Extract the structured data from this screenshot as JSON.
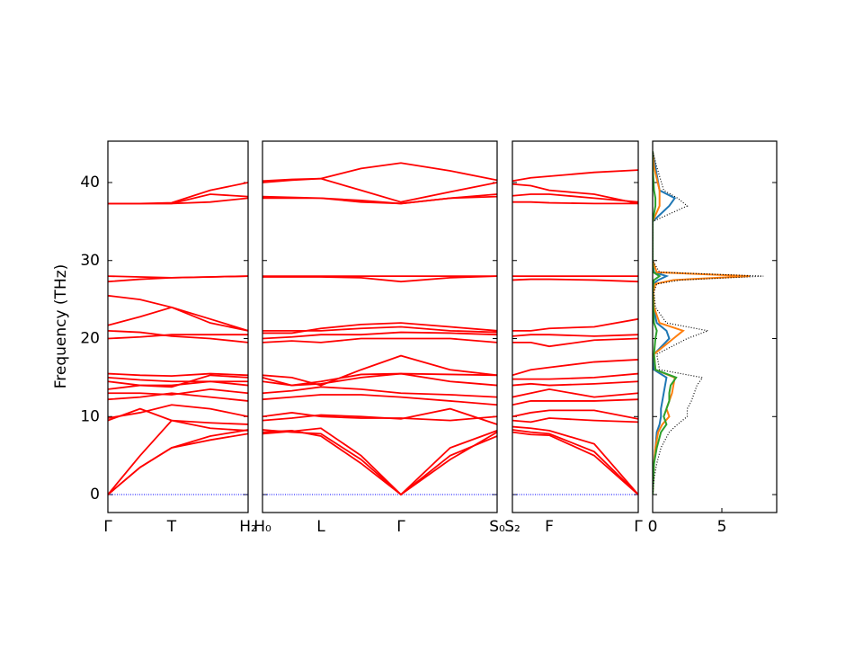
{
  "chart_data": [
    {
      "type": "line",
      "y_label": "Frequency (THz)",
      "color": "#ff0000",
      "ylim": [
        -2.3,
        45.3
      ],
      "yticks": [
        0,
        10,
        20,
        30,
        40
      ],
      "xlim": [
        0,
        1
      ],
      "xticks": [
        {
          "value": 0,
          "label": "Γ"
        },
        {
          "value": 0.455,
          "label": "T"
        },
        {
          "value": 1,
          "label": "H₂"
        }
      ],
      "zero_line": {
        "value": 0,
        "color": "#0000ff"
      },
      "x": [
        0,
        0.23,
        0.455,
        0.73,
        1
      ],
      "series": [
        {
          "values": [
            0,
            3.5,
            6,
            7,
            7.8
          ]
        },
        {
          "values": [
            0,
            3.5,
            6,
            7.5,
            8.3
          ]
        },
        {
          "values": [
            0,
            5,
            9.5,
            9.2,
            9
          ]
        },
        {
          "values": [
            9.5,
            11,
            9.5,
            8.5,
            8.2
          ]
        },
        {
          "values": [
            9.8,
            10.5,
            11.5,
            11,
            10
          ]
        },
        {
          "values": [
            12.2,
            12.5,
            13,
            12.5,
            12
          ]
        },
        {
          "values": [
            13,
            13,
            12.8,
            13.5,
            13
          ]
        },
        {
          "values": [
            13.5,
            14,
            14,
            14.5,
            14
          ]
        },
        {
          "values": [
            14.5,
            14,
            13.8,
            15.3,
            15
          ]
        },
        {
          "values": [
            15.5,
            15.3,
            15.2,
            15.5,
            15.3
          ]
        },
        {
          "values": [
            15,
            14.7,
            14.5,
            14.5,
            14.5
          ]
        },
        {
          "values": [
            20,
            20.2,
            20.5,
            20.5,
            20.5
          ]
        },
        {
          "values": [
            21,
            20.8,
            20.3,
            20,
            19.5
          ]
        },
        {
          "values": [
            21.7,
            22.8,
            24,
            22.5,
            21
          ]
        },
        {
          "values": [
            25.5,
            25,
            24,
            22,
            21
          ]
        },
        {
          "values": [
            27.3,
            27.6,
            27.8,
            27.9,
            28
          ]
        },
        {
          "values": [
            28,
            27.9,
            27.8,
            27.9,
            28
          ]
        },
        {
          "values": [
            37.3,
            37.3,
            37.3,
            37.5,
            38
          ]
        },
        {
          "values": [
            37.3,
            37.3,
            37.3,
            38.5,
            38.2
          ]
        },
        {
          "values": [
            37.3,
            37.3,
            37.4,
            39,
            40
          ]
        }
      ]
    },
    {
      "type": "line",
      "color": "#ff0000",
      "ylim": [
        -2.3,
        45.3
      ],
      "xlim": [
        0,
        1
      ],
      "xticks": [
        {
          "value": 0,
          "label": "H₀"
        },
        {
          "value": 0.249,
          "label": "L"
        },
        {
          "value": 0.59,
          "label": "Γ"
        },
        {
          "value": 1,
          "label": "S₀"
        }
      ],
      "zero_line": {
        "value": 0,
        "color": "#0000ff"
      },
      "x": [
        0,
        0.125,
        0.249,
        0.42,
        0.59,
        0.8,
        1
      ],
      "series": [
        {
          "values": [
            8,
            8.2,
            7.5,
            4,
            0,
            4.5,
            8
          ]
        },
        {
          "values": [
            8.3,
            8,
            7.8,
            4.5,
            0,
            5,
            7.5
          ]
        },
        {
          "values": [
            7.8,
            8.1,
            8.5,
            5,
            0,
            6,
            8.2
          ]
        },
        {
          "values": [
            9.5,
            9.8,
            10.2,
            10,
            9.7,
            11,
            9
          ]
        },
        {
          "values": [
            10,
            10.5,
            10,
            9.8,
            9.8,
            9.5,
            10
          ]
        },
        {
          "values": [
            12.2,
            12.5,
            12.8,
            12.8,
            12.5,
            12,
            11.5
          ]
        },
        {
          "values": [
            13,
            13.3,
            13.8,
            13.5,
            13,
            12.8,
            12.5
          ]
        },
        {
          "values": [
            14.5,
            14,
            14.2,
            15,
            15.5,
            14.5,
            14
          ]
        },
        {
          "values": [
            15.3,
            15,
            14,
            16,
            17.8,
            16,
            15.3
          ]
        },
        {
          "values": [
            15,
            14,
            14.5,
            15.4,
            15.5,
            15.4,
            15.3
          ]
        },
        {
          "values": [
            19.5,
            19.7,
            19.5,
            20,
            20,
            20,
            19.5
          ]
        },
        {
          "values": [
            20,
            20.2,
            20.5,
            20.5,
            20.8,
            20.7,
            20.5
          ]
        },
        {
          "values": [
            20.7,
            20.7,
            21.3,
            21.8,
            22,
            21.5,
            21
          ]
        },
        {
          "values": [
            21,
            21,
            21,
            21.3,
            21.5,
            21,
            20.8
          ]
        },
        {
          "values": [
            28,
            28,
            28,
            28,
            28,
            28,
            28
          ]
        },
        {
          "values": [
            27.9,
            27.9,
            27.9,
            27.8,
            27.3,
            27.8,
            28
          ]
        },
        {
          "values": [
            38.2,
            38.1,
            38,
            37.7,
            37.3,
            38,
            38.5
          ]
        },
        {
          "values": [
            38,
            38,
            38,
            37.5,
            37.3,
            38,
            38.2
          ]
        },
        {
          "values": [
            40.2,
            40.4,
            40.5,
            39,
            37.5,
            38.8,
            40
          ]
        },
        {
          "values": [
            40,
            40.3,
            40.5,
            41.8,
            42.5,
            41.5,
            40.3
          ]
        }
      ]
    },
    {
      "type": "line",
      "color": "#ff0000",
      "ylim": [
        -2.3,
        45.3
      ],
      "xlim": [
        0,
        1
      ],
      "xticks": [
        {
          "value": 0,
          "label": "S₂"
        },
        {
          "value": 0.293,
          "label": "F"
        },
        {
          "value": 1,
          "label": "Γ"
        }
      ],
      "zero_line": {
        "value": 0,
        "color": "#0000ff"
      },
      "x": [
        0,
        0.146,
        0.293,
        0.65,
        1
      ],
      "series": [
        {
          "values": [
            8,
            7.7,
            7.6,
            5,
            0
          ]
        },
        {
          "values": [
            8.3,
            8,
            7.8,
            5.5,
            0
          ]
        },
        {
          "values": [
            8.7,
            8.5,
            8.2,
            6.5,
            0
          ]
        },
        {
          "values": [
            9.5,
            9.3,
            9.8,
            9.5,
            9.3
          ]
        },
        {
          "values": [
            10,
            10.5,
            10.8,
            10.8,
            9.7
          ]
        },
        {
          "values": [
            11.5,
            12,
            12,
            12,
            12.2
          ]
        },
        {
          "values": [
            12.5,
            13,
            13.5,
            12.5,
            13
          ]
        },
        {
          "values": [
            14,
            14.2,
            14,
            14.2,
            14.5
          ]
        },
        {
          "values": [
            15.3,
            16,
            16.3,
            17,
            17.3
          ]
        },
        {
          "values": [
            14.8,
            14.8,
            14.8,
            15,
            15.5
          ]
        },
        {
          "values": [
            19.5,
            19.5,
            19,
            19.8,
            20
          ]
        },
        {
          "values": [
            20.3,
            20.5,
            20.5,
            20.3,
            20.5
          ]
        },
        {
          "values": [
            21,
            21,
            21.3,
            21.5,
            22.5
          ]
        },
        {
          "values": [
            28,
            28,
            28,
            28,
            28
          ]
        },
        {
          "values": [
            27.5,
            27.6,
            27.6,
            27.5,
            27.3
          ]
        },
        {
          "values": [
            37.5,
            37.5,
            37.4,
            37.3,
            37.3
          ]
        },
        {
          "values": [
            38.3,
            38.5,
            38.5,
            38,
            37.5
          ]
        },
        {
          "values": [
            40.2,
            40.6,
            40.8,
            41.3,
            41.6
          ]
        },
        {
          "values": [
            39.8,
            39.6,
            39,
            38.5,
            37.3
          ]
        }
      ]
    },
    {
      "type": "dos",
      "ylim": [
        -2.3,
        45.3
      ],
      "xlim": [
        0,
        8.96
      ],
      "xticks": [
        0,
        5
      ],
      "yticks": [
        0,
        10,
        20,
        30,
        40
      ],
      "y": [
        0,
        2,
        4,
        6,
        8,
        9,
        10,
        11,
        12,
        13,
        14,
        15,
        16,
        18,
        20,
        21,
        22,
        24,
        26,
        27,
        27.5,
        28,
        28.5,
        30,
        35,
        37,
        38,
        39,
        42,
        44
      ],
      "series": [
        {
          "color": "#1f77b4",
          "style": "solid",
          "values": [
            0,
            0.05,
            0.1,
            0.2,
            0.3,
            0.5,
            0.6,
            0.6,
            0.7,
            0.8,
            0.9,
            1,
            0.1,
            0.1,
            1.2,
            1,
            0.3,
            0.05,
            0,
            0.05,
            0.4,
            1,
            0.1,
            0,
            0,
            1.2,
            1.6,
            0.5,
            0.2,
            0
          ]
        },
        {
          "color": "#ff7f0e",
          "style": "solid",
          "values": [
            0,
            0.05,
            0.1,
            0.2,
            0.4,
            0.7,
            1.2,
            1,
            1.2,
            1.4,
            1.5,
            1.6,
            0.2,
            0.1,
            1.5,
            2.2,
            0.5,
            0.1,
            0.05,
            0.2,
            1.5,
            7,
            0.3,
            0,
            0,
            0.5,
            0.5,
            0.5,
            0.1,
            0
          ]
        },
        {
          "color": "#2ca02c",
          "style": "solid",
          "values": [
            0,
            0.05,
            0.1,
            0.3,
            0.6,
            1,
            0.8,
            1,
            1.2,
            1.2,
            1.3,
            1.7,
            0.2,
            0.1,
            0.2,
            0.3,
            0.1,
            0.05,
            0,
            0.05,
            0.1,
            0.5,
            0.05,
            0,
            0,
            0.2,
            0.2,
            0.1,
            0,
            0
          ]
        },
        {
          "color": "#000000",
          "style": "dotted",
          "values": [
            0,
            0.1,
            0.3,
            0.6,
            1.2,
            1.8,
            2.5,
            2.5,
            2.8,
            3,
            3.2,
            3.6,
            0.5,
            0.3,
            2.5,
            4,
            1,
            0.2,
            0.1,
            0.3,
            2,
            8,
            0.5,
            0,
            0,
            2.5,
            1.8,
            0.8,
            0.3,
            0
          ]
        }
      ]
    }
  ]
}
